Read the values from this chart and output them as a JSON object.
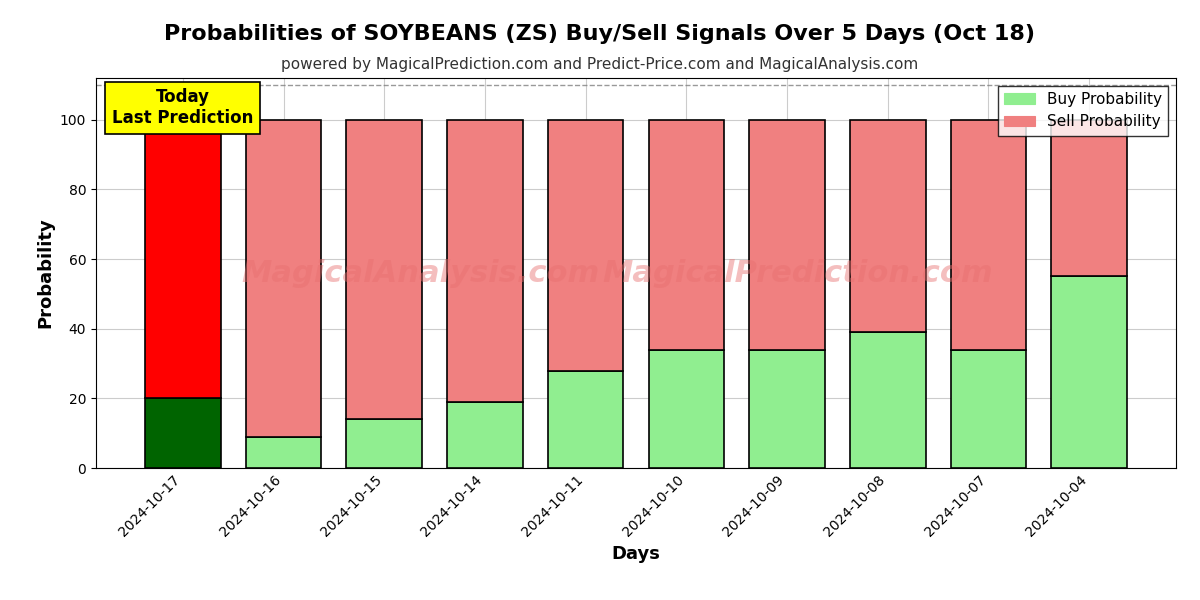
{
  "title": "Probabilities of SOYBEANS (ZS) Buy/Sell Signals Over 5 Days (Oct 18)",
  "subtitle": "powered by MagicalPrediction.com and Predict-Price.com and MagicalAnalysis.com",
  "xlabel": "Days",
  "ylabel": "Probability",
  "categories": [
    "2024-10-17",
    "2024-10-16",
    "2024-10-15",
    "2024-10-14",
    "2024-10-11",
    "2024-10-10",
    "2024-10-09",
    "2024-10-08",
    "2024-10-07",
    "2024-10-04"
  ],
  "buy_values": [
    20,
    9,
    14,
    19,
    28,
    34,
    34,
    39,
    34,
    55
  ],
  "sell_values": [
    80,
    91,
    86,
    81,
    72,
    66,
    66,
    61,
    66,
    45
  ],
  "buy_color_today": "#006400",
  "sell_color_today": "#ff0000",
  "buy_color_normal": "#90EE90",
  "sell_color_normal": "#F08080",
  "bar_edge_color": "#000000",
  "bar_edge_width": 1.2,
  "today_annotation": "Today\nLast Prediction",
  "today_annotation_bg": "#ffff00",
  "ylim_max": 112,
  "yticks": [
    0,
    20,
    40,
    60,
    80,
    100
  ],
  "dashed_line_y": 110,
  "watermark_text1": "MagicalAnalysis.com",
  "watermark_text2": "MagicalPrediction.com",
  "watermark_color": "#E87070",
  "watermark_alpha": 0.45,
  "grid_color": "#cccccc",
  "background_color": "#ffffff",
  "title_fontsize": 16,
  "subtitle_fontsize": 11,
  "label_fontsize": 13,
  "tick_fontsize": 10,
  "legend_fontsize": 11,
  "bar_width": 0.75
}
